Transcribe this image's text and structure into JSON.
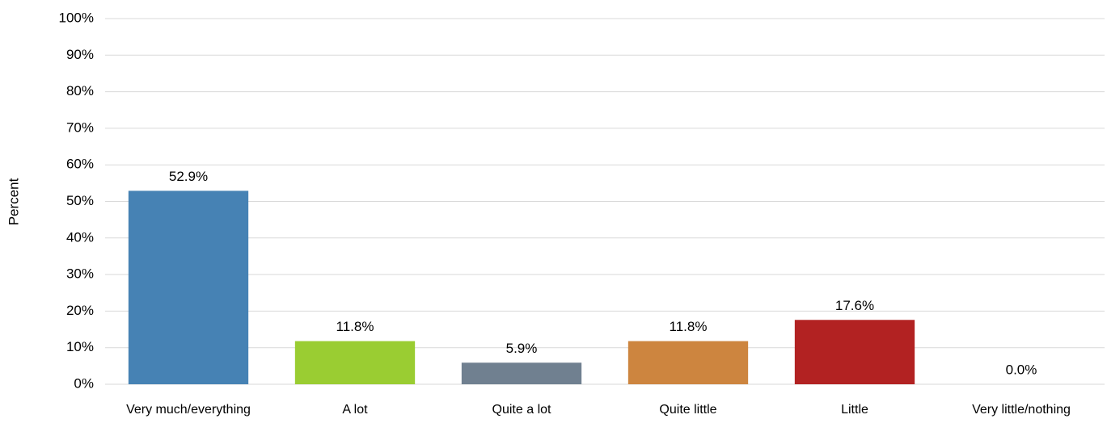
{
  "chart_data": {
    "type": "bar",
    "y_label": "Percent",
    "categories": [
      "Very much/everything",
      "A lot",
      "Quite a lot",
      "Quite little",
      "Little",
      "Very little/nothing"
    ],
    "values": [
      52.9,
      11.8,
      5.9,
      11.8,
      17.6,
      0.0
    ],
    "value_labels": [
      "52.9%",
      "11.8%",
      "5.9%",
      "11.8%",
      "17.6%",
      "0.0%"
    ],
    "colors": [
      "#4682b4",
      "#9acd32",
      "#708090",
      "#cd853f",
      "#b22222",
      "#8064a2"
    ],
    "ylim": [
      0,
      100
    ],
    "yticks": [
      {
        "value": 0,
        "label": "0%"
      },
      {
        "value": 10,
        "label": "10%"
      },
      {
        "value": 20,
        "label": "20%"
      },
      {
        "value": 30,
        "label": "30%"
      },
      {
        "value": 40,
        "label": "40%"
      },
      {
        "value": 50,
        "label": "50%"
      },
      {
        "value": 60,
        "label": "60%"
      },
      {
        "value": 70,
        "label": "70%"
      },
      {
        "value": 80,
        "label": "80%"
      },
      {
        "value": 90,
        "label": "90%"
      },
      {
        "value": 100,
        "label": "100%"
      }
    ],
    "grid": true
  }
}
